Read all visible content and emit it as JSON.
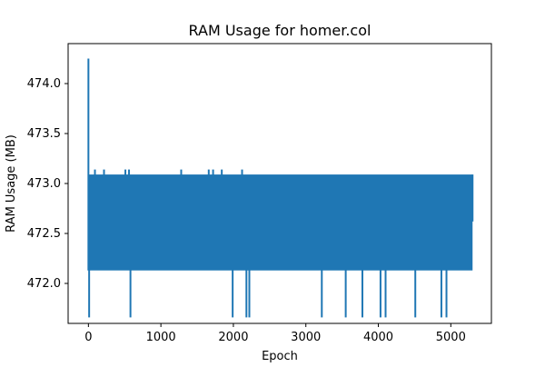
{
  "chart_data": {
    "type": "line",
    "title": "RAM Usage for homer.col",
    "xlabel": "Epoch",
    "ylabel": "RAM Usage (MB)",
    "xlim": [
      -280,
      5560
    ],
    "ylim": [
      471.6,
      474.4
    ],
    "xticks": [
      0,
      1000,
      2000,
      3000,
      4000,
      5000
    ],
    "yticks": [
      472.0,
      472.5,
      473.0,
      473.5,
      474.0
    ],
    "xtick_labels": [
      "0",
      "1000",
      "2000",
      "3000",
      "4000",
      "5000"
    ],
    "ytick_labels": [
      "472.0",
      "472.5",
      "473.0",
      "473.5",
      "474.0"
    ],
    "grid": false,
    "legend": "none",
    "series": [
      {
        "color": "#1f77b4",
        "x_range": [
          0,
          5300
        ],
        "initial_spike": 474.25,
        "band_low": 472.13,
        "band_high": 473.09,
        "upper_spikes": [
          {
            "x": 90,
            "y": 473.14
          },
          {
            "x": 215,
            "y": 473.14
          },
          {
            "x": 510,
            "y": 473.14
          },
          {
            "x": 560,
            "y": 473.14
          },
          {
            "x": 1280,
            "y": 473.14
          },
          {
            "x": 1660,
            "y": 473.14
          },
          {
            "x": 1720,
            "y": 473.14
          },
          {
            "x": 1840,
            "y": 473.14
          },
          {
            "x": 2120,
            "y": 473.14
          }
        ],
        "lower_spikes": [
          {
            "x": 10,
            "y": 471.66
          },
          {
            "x": 580,
            "y": 471.66
          },
          {
            "x": 1990,
            "y": 471.66
          },
          {
            "x": 2180,
            "y": 471.66
          },
          {
            "x": 2220,
            "y": 471.66
          },
          {
            "x": 3220,
            "y": 471.66
          },
          {
            "x": 3550,
            "y": 471.66
          },
          {
            "x": 3780,
            "y": 471.66
          },
          {
            "x": 4030,
            "y": 471.66
          },
          {
            "x": 4100,
            "y": 471.66
          },
          {
            "x": 4510,
            "y": 471.66
          },
          {
            "x": 4870,
            "y": 471.66
          },
          {
            "x": 4940,
            "y": 471.66
          }
        ],
        "tail_end": 472.62
      }
    ]
  }
}
